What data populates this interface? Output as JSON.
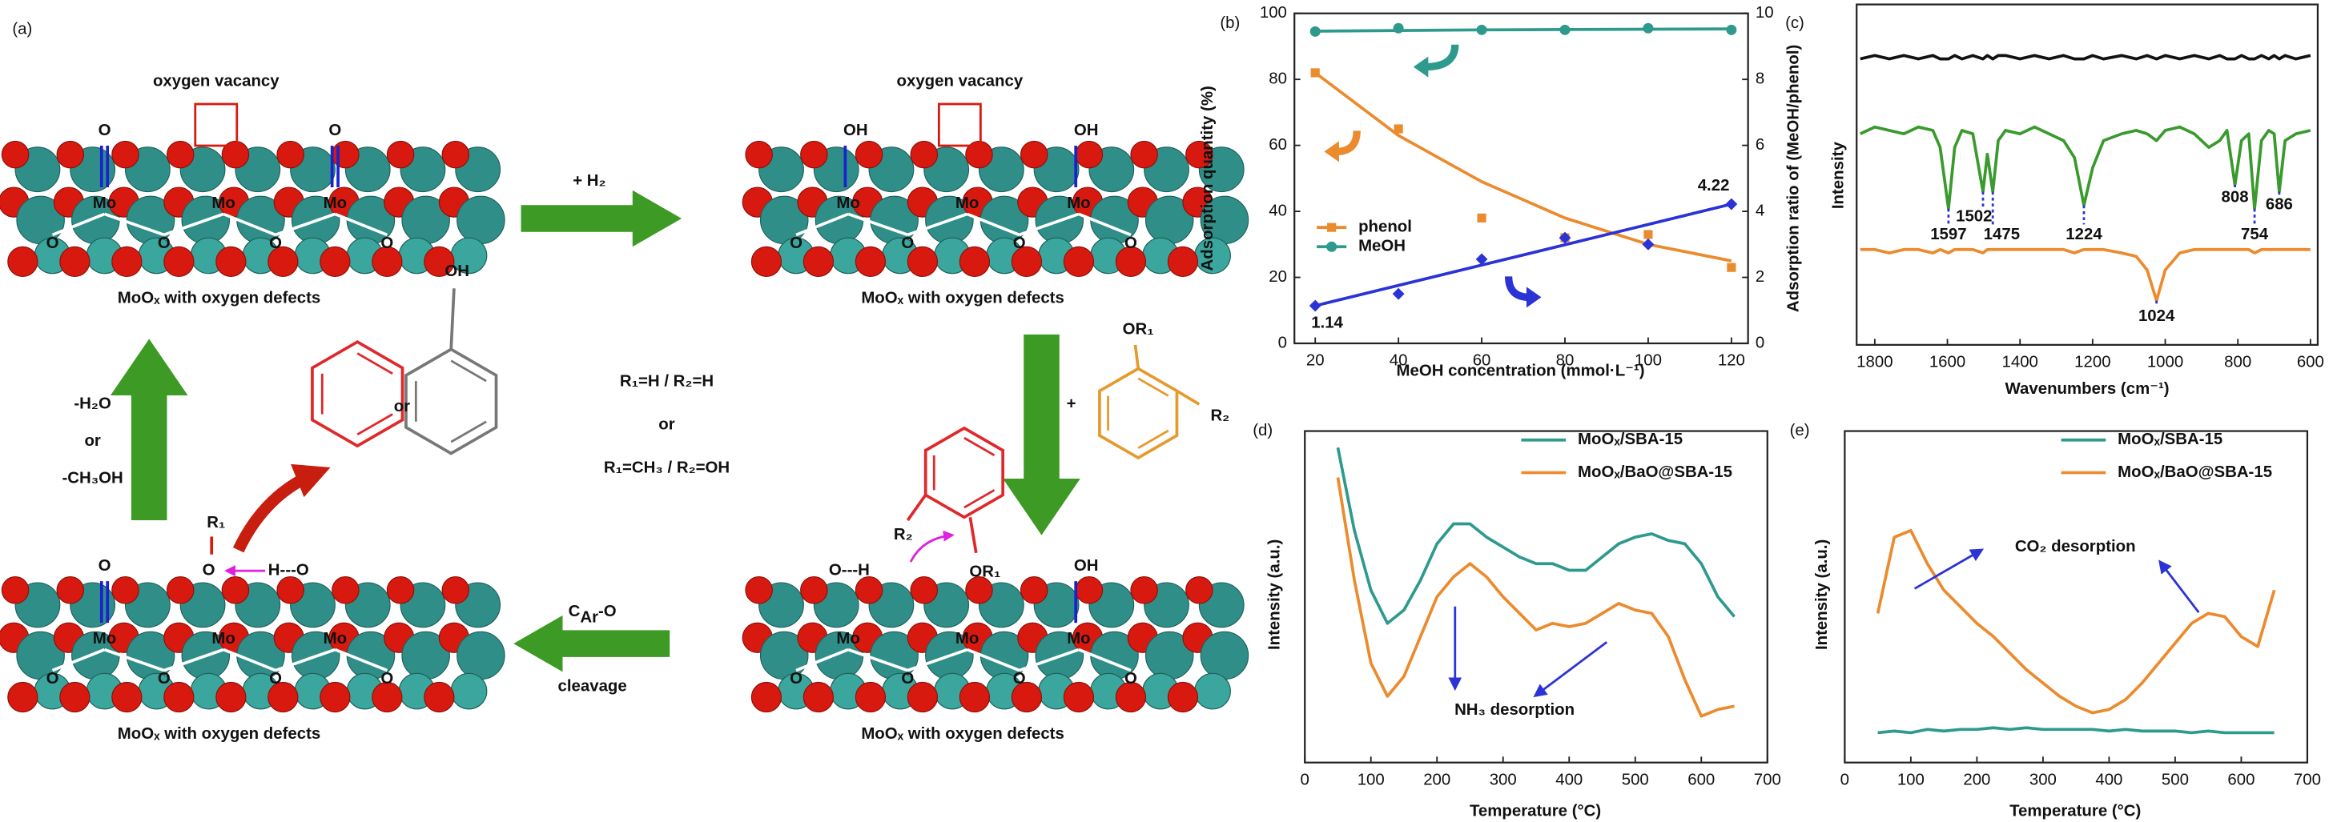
{
  "panel_a": {
    "label": "(a)",
    "vacancy": [
      "oxygen vacancy",
      "oxygen vacancy"
    ],
    "slabs": [
      {
        "caption": "MoOₓ with oxygen defects",
        "mo": [
          "Mo",
          "Mo",
          "Mo"
        ],
        "o": [
          "O",
          "O",
          "O",
          "O"
        ],
        "top": [
          "O",
          "O"
        ]
      },
      {
        "caption": "MoOₓ with oxygen defects",
        "mo": [
          "Mo",
          "Mo",
          "Mo"
        ],
        "o": [
          "O",
          "O",
          "O",
          "O"
        ],
        "top": [
          "OH",
          "OH"
        ]
      },
      {
        "caption": "MoOₓ with oxygen defects",
        "mo": [
          "Mo",
          "Mo",
          "Mo"
        ],
        "o": [
          "O",
          "O",
          "O",
          "O"
        ],
        "top": [
          "O"
        ]
      },
      {
        "caption": "MoOₓ with oxygen defects",
        "mo": [
          "Mo",
          "Mo",
          "Mo"
        ],
        "o": [
          "O",
          "O",
          "O",
          "O"
        ],
        "top": [
          "OH"
        ]
      }
    ],
    "hydrogenation": "+ H₂",
    "reactant": {
      "plus": "+",
      "or1": "OR₁",
      "r2": "R₂"
    },
    "conditions": [
      "R₁=H / R₂=H",
      "or",
      "R₁=CH₃ / R₂=OH"
    ],
    "adsorbed": {
      "oh": "O---H",
      "r2": "R₂",
      "or1": "OR₁"
    },
    "cleavage": {
      "c": "C",
      "sub": "Ar",
      "rest": "-O",
      "word": "cleavage"
    },
    "products": {
      "or": "or",
      "oh": "OH"
    },
    "release": [
      "-H₂O",
      "or",
      "-CH₃OH"
    ],
    "intermediate": {
      "r1": "R₁",
      "o": "O",
      "h": "H---O"
    }
  },
  "chart_data": [
    {
      "type": "scatter",
      "label": "(b)",
      "xlabel": "MeOH concentration (mmol·L⁻¹)",
      "ylabel": "Adsorption quantity (%)",
      "y2label": "Adsorption ratio of (MeOH/phenol)",
      "x": [
        20,
        40,
        60,
        80,
        100,
        120
      ],
      "xlim": [
        15,
        124
      ],
      "xticks": [
        20,
        40,
        60,
        80,
        100,
        120
      ],
      "ylim": [
        0,
        100
      ],
      "yticks": [
        0,
        20,
        40,
        60,
        80,
        100
      ],
      "y2lim": [
        0,
        10
      ],
      "y2ticks": [
        0,
        2,
        4,
        6,
        8,
        10
      ],
      "legend": "center-left",
      "series": [
        {
          "name": "phenol",
          "color": "#ec8a2e",
          "marker": "square",
          "values": [
            82,
            65,
            38,
            32,
            33,
            23
          ],
          "fit": [
            82,
            63,
            49,
            38,
            30,
            25
          ]
        },
        {
          "name": "MeOH",
          "color": "#2e9a8e",
          "marker": "circle",
          "values": [
            94.5,
            95.5,
            95,
            95,
            95.5,
            95
          ],
          "fit": [
            94.6,
            94.8,
            95,
            95.1,
            95.2,
            95.3
          ]
        },
        {
          "color": "#2b33d6",
          "marker": "diamond",
          "axis": "y2",
          "values": [
            1.14,
            1.5,
            2.55,
            3.2,
            3.0,
            4.22
          ],
          "fit": [
            1.14,
            1.756,
            2.372,
            2.988,
            3.604,
            4.22
          ]
        }
      ]
    },
    {
      "type": "line",
      "label": "(c)",
      "xlabel": "Wavenumbers (cm⁻¹)",
      "ylabel": "Intensity",
      "x": [
        1840,
        1800,
        1760,
        1720,
        1680,
        1640,
        1620,
        1597,
        1580,
        1560,
        1530,
        1502,
        1490,
        1475,
        1460,
        1440,
        1400,
        1360,
        1320,
        1280,
        1250,
        1224,
        1200,
        1170,
        1120,
        1080,
        1050,
        1024,
        1000,
        960,
        920,
        880,
        850,
        830,
        808,
        790,
        770,
        754,
        735,
        715,
        700,
        686,
        670,
        640,
        600
      ],
      "xlim": [
        1850,
        580
      ],
      "xticks": [
        1800,
        1600,
        1400,
        1200,
        1000,
        800,
        600
      ],
      "ylim": [
        0,
        100
      ],
      "series": [
        {
          "color": "#111111",
          "values": [
            84,
            85,
            84,
            85,
            84,
            85,
            84,
            84,
            85,
            84,
            85,
            84,
            85,
            84,
            85,
            85,
            84,
            85,
            84,
            85,
            84,
            84,
            85,
            84,
            85,
            84,
            85,
            84,
            85,
            84,
            85,
            84,
            85,
            84,
            84,
            85,
            84,
            84,
            85,
            84,
            85,
            84,
            85,
            84,
            85
          ]
        },
        {
          "color": "#3a9a2e",
          "values": [
            62,
            64,
            63,
            62,
            64,
            63,
            58,
            40,
            58,
            63,
            62,
            45,
            56,
            45,
            60,
            63,
            62,
            64,
            62,
            60,
            55,
            41,
            52,
            60,
            62,
            63,
            62,
            60,
            63,
            64,
            62,
            58,
            60,
            63,
            47,
            60,
            62,
            40,
            60,
            63,
            62,
            45,
            60,
            62,
            63
          ]
        },
        {
          "color": "#ec8a2e",
          "values": [
            28,
            28,
            27,
            28,
            28,
            27,
            28,
            27,
            28,
            28,
            28,
            27,
            28,
            28,
            28,
            28,
            28,
            28,
            28,
            28,
            27,
            28,
            28,
            28,
            27,
            26,
            22,
            13,
            22,
            27,
            28,
            28,
            28,
            28,
            28,
            28,
            28,
            27,
            28,
            28,
            28,
            28,
            28,
            28,
            28
          ]
        }
      ],
      "peaks": [
        1597,
        1502,
        1475,
        1224,
        808,
        754,
        686,
        1024
      ]
    },
    {
      "type": "line",
      "label": "(d)",
      "xlabel": "Temperature (°C)",
      "ylabel": "Intensity (a.u.)",
      "x": [
        50,
        75,
        100,
        125,
        150,
        175,
        200,
        225,
        250,
        275,
        300,
        325,
        350,
        375,
        400,
        425,
        450,
        475,
        500,
        525,
        550,
        575,
        600,
        625,
        650
      ],
      "xlim": [
        0,
        700
      ],
      "xticks": [
        0,
        100,
        200,
        300,
        400,
        500,
        600,
        700
      ],
      "ylim": [
        0,
        100
      ],
      "legend": "upper-center",
      "series": [
        {
          "name": "MoOₓ/SBA-15",
          "color": "#2e9a8e",
          "values": [
            95,
            70,
            52,
            42,
            46,
            55,
            66,
            72,
            72,
            68,
            65,
            62,
            60,
            60,
            58,
            58,
            62,
            66,
            68,
            69,
            67,
            66,
            60,
            50,
            44
          ]
        },
        {
          "name": "MoOₓ/BaO@SBA-15",
          "color": "#ec8a2e",
          "values": [
            86,
            55,
            30,
            20,
            26,
            38,
            50,
            56,
            60,
            56,
            50,
            45,
            40,
            42,
            41,
            42,
            45,
            48,
            46,
            45,
            38,
            25,
            14,
            16,
            17
          ]
        }
      ],
      "annotation": "NH₃ desorption"
    },
    {
      "type": "line",
      "label": "(e)",
      "xlabel": "Temperature (°C)",
      "ylabel": "Intensity (a.u.)",
      "x": [
        50,
        75,
        100,
        125,
        150,
        175,
        200,
        225,
        250,
        275,
        300,
        325,
        350,
        375,
        400,
        425,
        450,
        475,
        500,
        525,
        550,
        575,
        600,
        625,
        650
      ],
      "xlim": [
        0,
        700
      ],
      "xticks": [
        0,
        100,
        200,
        300,
        400,
        500,
        600,
        700
      ],
      "ylim": [
        0,
        100
      ],
      "legend": "upper-center",
      "series": [
        {
          "name": "MoOₓ/SBA-15",
          "color": "#2e9a8e",
          "values": [
            9,
            9.5,
            9,
            10,
            9.5,
            10,
            10,
            10.5,
            10,
            10.5,
            10,
            10,
            10,
            10,
            9.5,
            10,
            9.5,
            9.5,
            9.5,
            9,
            9.5,
            9,
            9,
            9,
            9
          ]
        },
        {
          "name": "MoOₓ/BaO@SBA-15",
          "color": "#ec8a2e",
          "values": [
            45,
            68,
            70,
            60,
            52,
            47,
            42,
            38,
            33,
            28,
            24,
            20,
            17,
            15,
            16,
            19,
            24,
            30,
            36,
            42,
            45,
            44,
            38,
            35,
            52
          ]
        }
      ],
      "annotation": "CO₂ desorption"
    }
  ]
}
